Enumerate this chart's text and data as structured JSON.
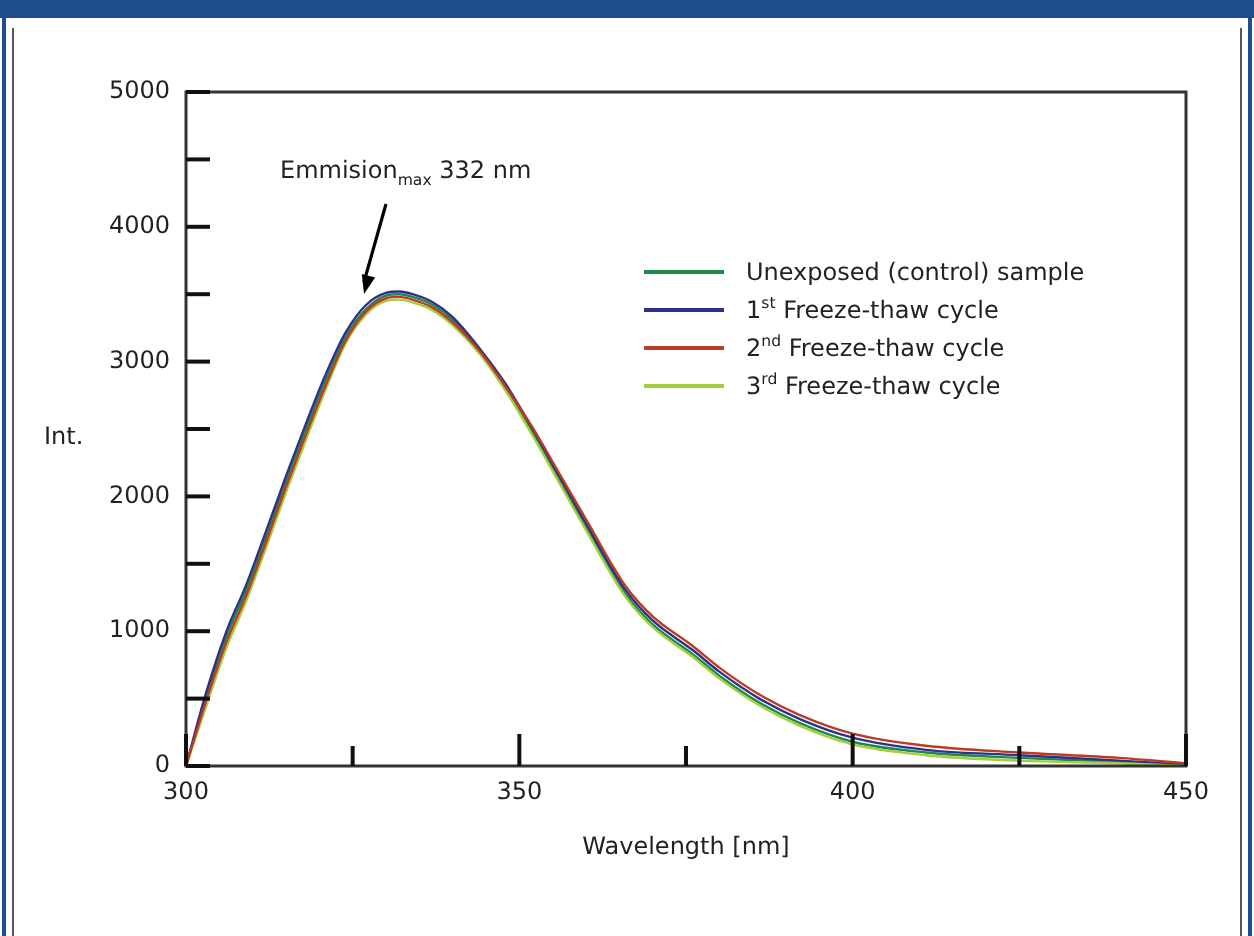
{
  "chart_data": {
    "type": "line",
    "xlabel": "Wavelength [nm]",
    "ylabel": "Int.",
    "x": [
      300,
      303,
      306,
      309,
      312,
      315,
      318,
      321,
      324,
      327,
      330,
      332,
      334,
      337,
      340,
      344,
      348,
      352,
      356,
      360,
      366,
      370,
      376,
      380,
      386,
      392,
      400,
      411,
      425,
      440,
      450
    ],
    "series": [
      {
        "name": "Unexposed (control) sample",
        "color": "#1b8a4c",
        "values": [
          0,
          510,
          950,
          1300,
          1700,
          2110,
          2500,
          2870,
          3190,
          3390,
          3490,
          3500,
          3480,
          3420,
          3310,
          3080,
          2800,
          2470,
          2120,
          1770,
          1270,
          1050,
          830,
          670,
          470,
          320,
          180,
          100,
          60,
          30,
          10
        ]
      },
      {
        "name": "1$^{st}$ Freeze-thaw cycle",
        "color": "#2e3089",
        "values": [
          0,
          540,
          990,
          1340,
          1740,
          2150,
          2540,
          2910,
          3220,
          3420,
          3510,
          3520,
          3500,
          3440,
          3330,
          3100,
          2830,
          2500,
          2150,
          1800,
          1300,
          1080,
          860,
          700,
          500,
          350,
          210,
          120,
          80,
          40,
          10
        ]
      },
      {
        "name": "2$^{nd}$ Freeze-thaw cycle",
        "color": "#bd3b22",
        "values": [
          0,
          480,
          910,
          1260,
          1660,
          2070,
          2460,
          2830,
          3160,
          3370,
          3470,
          3480,
          3460,
          3400,
          3290,
          3080,
          2810,
          2510,
          2170,
          1830,
          1330,
          1110,
          890,
          730,
          530,
          380,
          240,
          150,
          100,
          60,
          20
        ]
      },
      {
        "name": "3$^{rd}$ Freeze-thaw cycle",
        "color": "#a5cd3c",
        "values": [
          0,
          440,
          870,
          1220,
          1620,
          2030,
          2420,
          2800,
          3140,
          3350,
          3450,
          3460,
          3440,
          3380,
          3270,
          3060,
          2780,
          2450,
          2100,
          1750,
          1250,
          1030,
          810,
          650,
          450,
          300,
          160,
          80,
          40,
          20,
          0
        ]
      }
    ],
    "xlim": [
      300,
      450
    ],
    "xticks": [
      300,
      {
        "value": 325,
        "label": null
      },
      350,
      {
        "value": 375,
        "label": null
      },
      400,
      {
        "value": 425,
        "label": null
      },
      450
    ],
    "ylim": [
      0,
      5000
    ],
    "yticks": [
      0,
      {
        "value": 500,
        "label": null
      },
      1000,
      {
        "value": 1500,
        "label": null
      },
      2000,
      {
        "value": 2500,
        "label": null
      },
      3000,
      {
        "value": 3500,
        "label": null
      },
      4000,
      {
        "value": 4500,
        "label": null
      },
      5000
    ],
    "grid": false,
    "legend": "top right",
    "marker": "none",
    "line_style": "solid",
    "annotations": [
      "Emmision$_{max}$ 332 nm"
    ]
  }
}
